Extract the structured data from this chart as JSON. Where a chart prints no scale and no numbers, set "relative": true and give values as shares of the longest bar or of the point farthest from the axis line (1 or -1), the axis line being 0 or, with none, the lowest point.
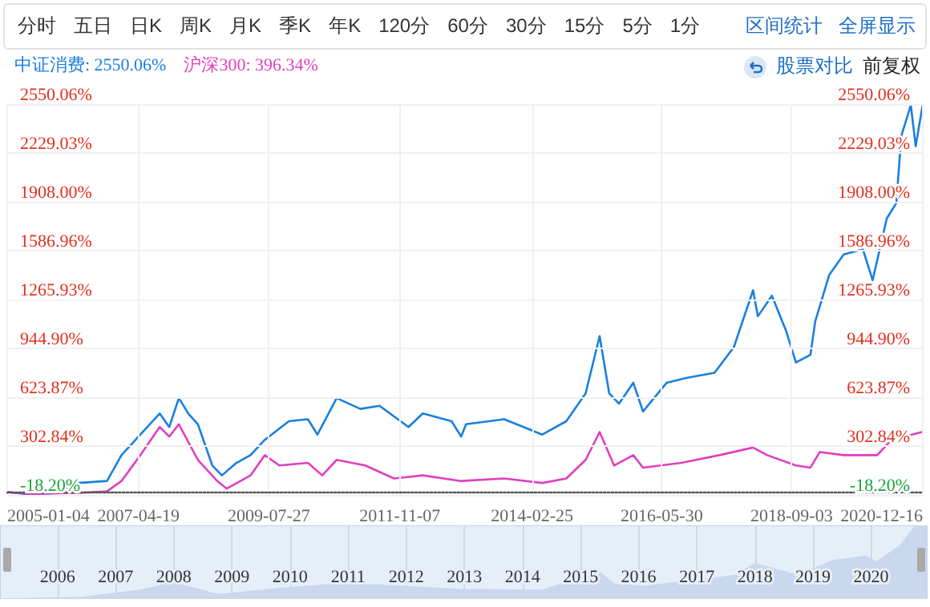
{
  "chart_data": [
    {
      "type": "line",
      "annotations": [
        "分时",
        "五日",
        "日K",
        "周K",
        "月K",
        "季K",
        "年K",
        "120分",
        "60分",
        "30分",
        "15分",
        "5分",
        "1分",
        "区间统计",
        "全屏显示",
        "股票对比",
        "前复权"
      ],
      "series": [
        {
          "name": "中证消费: 2550.06%",
          "color": "#1a7fe0",
          "x": [
            "2005-01-04",
            "2005-06",
            "2005-12",
            "2006-04",
            "2006-10",
            "2007-01",
            "2007-05",
            "2007-09",
            "2007-11",
            "2008-01",
            "2008-03",
            "2008-05",
            "2008-08",
            "2008-10",
            "2009-01",
            "2009-04",
            "2009-07",
            "2009-12",
            "2010-04",
            "2010-06",
            "2010-10",
            "2011-03",
            "2011-07",
            "2012-01",
            "2012-04",
            "2012-10",
            "2012-12",
            "2013-01",
            "2013-09",
            "2014-05",
            "2014-10",
            "2015-02",
            "2015-05",
            "2015-07",
            "2015-09",
            "2015-12",
            "2016-02",
            "2016-07",
            "2016-11",
            "2017-05",
            "2017-09",
            "2018-01",
            "2018-02",
            "2018-05",
            "2018-08",
            "2018-10",
            "2019-01",
            "2019-02",
            "2019-05",
            "2019-08",
            "2019-12",
            "2020-02",
            "2020-05",
            "2020-07",
            "2020-08",
            "2020-10",
            "2020-11",
            "2020-12-16"
          ],
          "values": [
            0,
            -15,
            -5,
            60,
            73,
            243,
            378,
            517,
            428,
            618,
            517,
            446,
            175,
            110,
            192,
            243,
            344,
            466,
            479,
            378,
            618,
            547,
            567,
            428,
            517,
            466,
            365,
            446,
            479,
            378,
            466,
            649,
            1025,
            649,
            581,
            719,
            530,
            719,
            750,
            784,
            953,
            1326,
            1156,
            1291,
            1055,
            852,
            902,
            1123,
            1428,
            1562,
            1596,
            1393,
            1799,
            1900,
            2340,
            2543,
            2273,
            2550.06
          ]
        },
        {
          "name": "沪深300: 396.34%",
          "color": "#e03fbf",
          "x": [
            "2005-01-04",
            "2005-06",
            "2006-04",
            "2006-10",
            "2007-01",
            "2007-05",
            "2007-09",
            "2007-11",
            "2008-01",
            "2008-05",
            "2008-09",
            "2008-11",
            "2009-04",
            "2009-07",
            "2009-10",
            "2010-04",
            "2010-07",
            "2010-10",
            "2011-04",
            "2011-10",
            "2012-04",
            "2012-12",
            "2013-09",
            "2014-05",
            "2014-10",
            "2015-02",
            "2015-05",
            "2015-08",
            "2015-12",
            "2016-02",
            "2016-10",
            "2017-06",
            "2018-01",
            "2018-04",
            "2018-10",
            "2019-01",
            "2019-03",
            "2019-08",
            "2020-03",
            "2020-06",
            "2020-12-16"
          ],
          "values": [
            0,
            -12,
            -5,
            5,
            73,
            243,
            428,
            365,
            446,
            212,
            73,
            23,
            110,
            243,
            175,
            192,
            110,
            212,
            175,
            90,
            110,
            73,
            90,
            60,
            90,
            212,
            395,
            175,
            243,
            161,
            192,
            243,
            293,
            243,
            175,
            161,
            263,
            243,
            243,
            344,
            396.34
          ]
        }
      ],
      "xlim": [
        "2005-01-04",
        "2020-12-16"
      ],
      "xticks": [
        "2005-01-04",
        "2007-04-19",
        "2009-07-27",
        "2011-11-07",
        "2014-02-25",
        "2016-05-30",
        "2018-09-03",
        "2020-12-16"
      ],
      "ylim": [
        -18.2,
        2550.06
      ],
      "yticks": [
        {
          "value": -18.2,
          "label": "-18.20%"
        },
        {
          "value": 302.84,
          "label": "302.84%"
        },
        {
          "value": 623.87,
          "label": "623.87%"
        },
        {
          "value": 944.9,
          "label": "944.90%"
        },
        {
          "value": 1265.93,
          "label": "1265.93%"
        },
        {
          "value": 1586.96,
          "label": "1586.96%"
        },
        {
          "value": 1908,
          "label": "1908.00%"
        },
        {
          "value": 2229.03,
          "label": "2229.03%"
        },
        {
          "value": 2550.06,
          "label": "2550.06%"
        }
      ],
      "y2lim": [
        -18.2,
        2550.06
      ],
      "y2ticks": [
        {
          "value": -18.2,
          "label": "-18.20%"
        },
        {
          "value": 302.84,
          "label": "302.84%"
        },
        {
          "value": 623.87,
          "label": "623.87%"
        },
        {
          "value": 944.9,
          "label": "944.90%"
        },
        {
          "value": 1265.93,
          "label": "1265.93%"
        },
        {
          "value": 1586.96,
          "label": "1586.96%"
        },
        {
          "value": 1908,
          "label": "1908.00%"
        },
        {
          "value": 2229.03,
          "label": "2229.03%"
        },
        {
          "value": 2550.06,
          "label": "2550.06%"
        }
      ],
      "grid": true,
      "legend": "top left"
    },
    {
      "type": "area",
      "relative": true,
      "color": "#c9d8ee",
      "x": [
        "2005-01-04",
        "2006-06",
        "2007-06",
        "2008-01",
        "2008-10",
        "2009-12",
        "2010-10",
        "2011-07",
        "2012-12",
        "2014-05",
        "2015-05",
        "2015-08",
        "2016-02",
        "2017-09",
        "2018-01",
        "2018-10",
        "2019-05",
        "2019-12",
        "2020-02",
        "2020-07",
        "2020-10",
        "2020-12-16"
      ],
      "values": [
        0,
        0.02,
        0.12,
        0.22,
        0.06,
        0.15,
        0.2,
        0.19,
        0.13,
        0.12,
        0.36,
        0.2,
        0.17,
        0.32,
        0.48,
        0.32,
        0.52,
        0.58,
        0.5,
        0.72,
        0.98,
        1
      ],
      "xlim": [
        "2005-01-04",
        "2020-12-16"
      ],
      "xticks": [
        "2006",
        "2007",
        "2008",
        "2009",
        "2010",
        "2011",
        "2012",
        "2013",
        "2014",
        "2015",
        "2016",
        "2017",
        "2018",
        "2019",
        "2020"
      ],
      "grid": "x",
      "tick_labels": "x"
    }
  ]
}
